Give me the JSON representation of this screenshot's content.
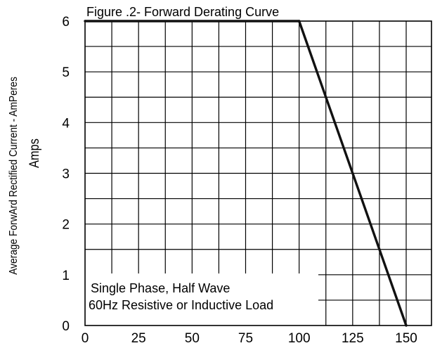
{
  "chart_data": {
    "type": "line",
    "title": "Figure .2- Forward Derating Curve",
    "ylabel": "Average ForwArd Rectified Current  -  AmPeres",
    "ylabel_unit": "Amps",
    "xlabel": "",
    "xlim": [
      0,
      160
    ],
    "ylim": [
      0,
      6
    ],
    "grid": true,
    "x_ticks": [
      "0",
      "25",
      "50",
      "75",
      "100",
      "125",
      "150"
    ],
    "y_ticks": [
      "0",
      "1",
      "2",
      "3",
      "4",
      "5",
      "6"
    ],
    "series": [
      {
        "x": [
          0,
          100,
          150
        ],
        "y": [
          6,
          6,
          0
        ]
      }
    ],
    "annotations": [
      "Single Phase, Half Wave",
      "60Hz Resistive or Inductive Load"
    ]
  }
}
